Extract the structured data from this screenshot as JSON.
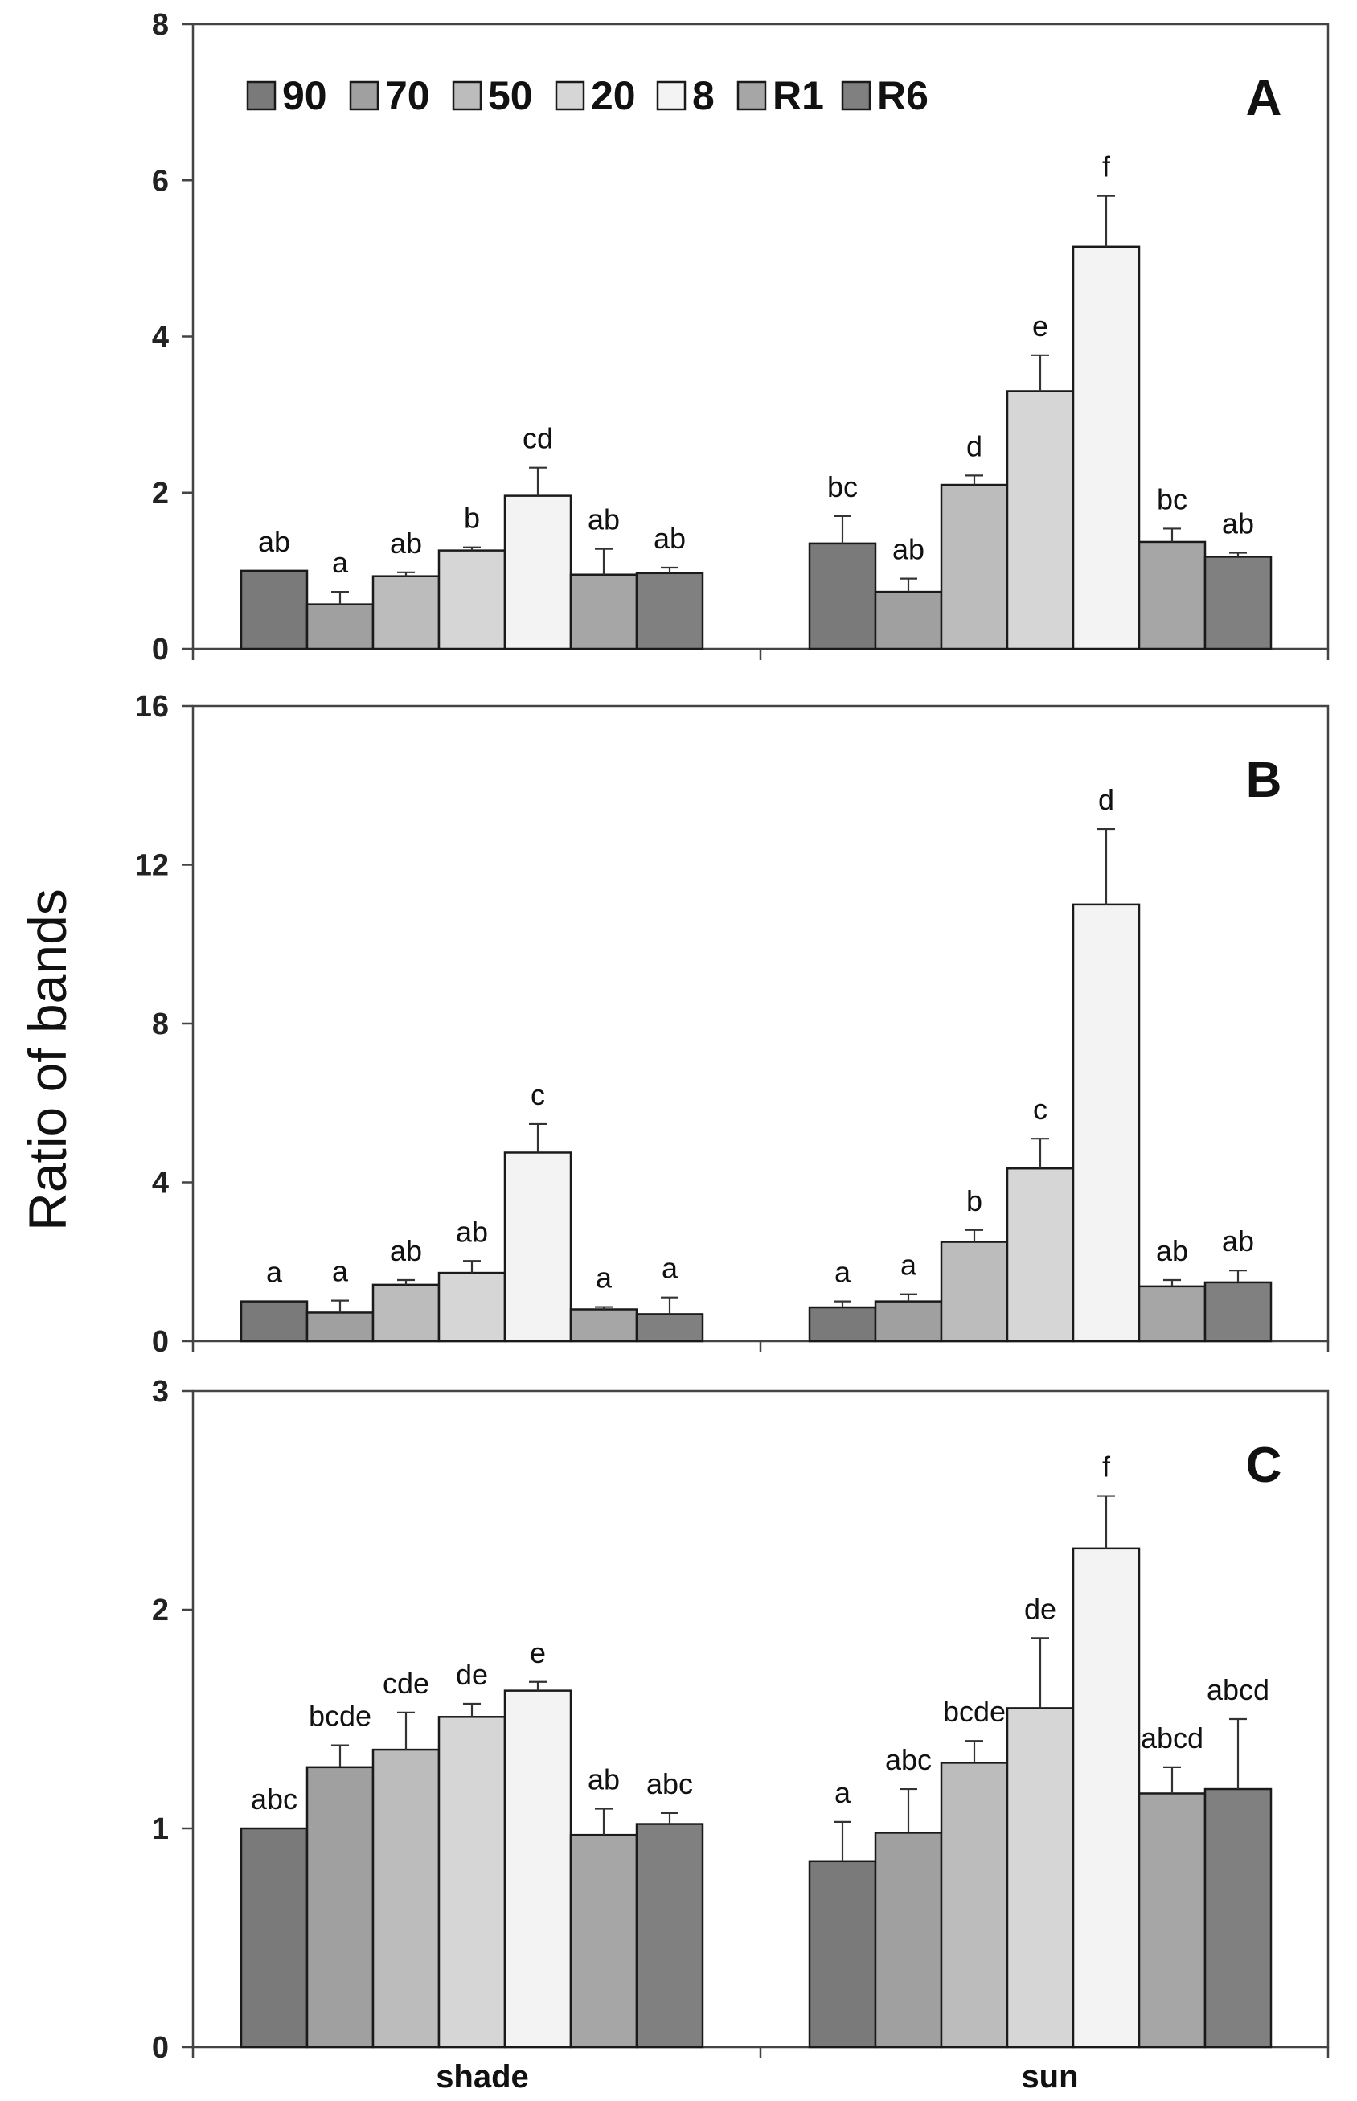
{
  "chart_data": {
    "type": "bar",
    "ylabel": "Ratio of bands",
    "categories": [
      "shade",
      "sun"
    ],
    "colors": [
      "#7a7a7a",
      "#a0a0a0",
      "#bcbcbc",
      "#d6d6d6",
      "#f3f3f3",
      "#a6a6a6",
      "#808080"
    ],
    "legend": [
      "90",
      "70",
      "50",
      "20",
      "8",
      "R1",
      "R6"
    ],
    "panels": [
      {
        "label": "A",
        "ylim": [
          0,
          8
        ],
        "ticks": [
          "0",
          "2",
          "4",
          "6",
          "8"
        ],
        "series": [
          {
            "name": "90",
            "values": [
              1.0,
              1.35
            ],
            "errors": [
              0.0,
              0.35
            ],
            "letters": [
              "ab",
              "bc"
            ]
          },
          {
            "name": "70",
            "values": [
              0.57,
              0.73
            ],
            "errors": [
              0.16,
              0.17
            ],
            "letters": [
              "a",
              "ab"
            ]
          },
          {
            "name": "50",
            "values": [
              0.93,
              2.1
            ],
            "errors": [
              0.05,
              0.12
            ],
            "letters": [
              "ab",
              "d"
            ]
          },
          {
            "name": "20",
            "values": [
              1.26,
              3.3
            ],
            "errors": [
              0.04,
              0.46
            ],
            "letters": [
              "b",
              "e"
            ]
          },
          {
            "name": "8",
            "values": [
              1.96,
              5.15
            ],
            "errors": [
              0.36,
              0.65
            ],
            "letters": [
              "cd",
              "f"
            ]
          },
          {
            "name": "R1",
            "values": [
              0.95,
              1.37
            ],
            "errors": [
              0.33,
              0.17
            ],
            "letters": [
              "ab",
              "bc"
            ]
          },
          {
            "name": "R6",
            "values": [
              0.97,
              1.18
            ],
            "errors": [
              0.07,
              0.05
            ],
            "letters": [
              "ab",
              "ab"
            ]
          }
        ]
      },
      {
        "label": "B",
        "ylim": [
          0,
          16
        ],
        "ticks": [
          "0",
          "4",
          "8",
          "12",
          "16"
        ],
        "series": [
          {
            "name": "90",
            "values": [
              1.0,
              0.85
            ],
            "errors": [
              0.0,
              0.15
            ],
            "letters": [
              "a",
              "a"
            ]
          },
          {
            "name": "70",
            "values": [
              0.72,
              1.0
            ],
            "errors": [
              0.3,
              0.18
            ],
            "letters": [
              "a",
              "a"
            ]
          },
          {
            "name": "50",
            "values": [
              1.42,
              2.5
            ],
            "errors": [
              0.12,
              0.3
            ],
            "letters": [
              "ab",
              "b"
            ]
          },
          {
            "name": "20",
            "values": [
              1.72,
              4.35
            ],
            "errors": [
              0.3,
              0.75
            ],
            "letters": [
              "ab",
              "c"
            ]
          },
          {
            "name": "8",
            "values": [
              4.75,
              11.0
            ],
            "errors": [
              0.72,
              1.9
            ],
            "letters": [
              "c",
              "d"
            ]
          },
          {
            "name": "R1",
            "values": [
              0.8,
              1.38
            ],
            "errors": [
              0.06,
              0.16
            ],
            "letters": [
              "a",
              "ab"
            ]
          },
          {
            "name": "R6",
            "values": [
              0.68,
              1.48
            ],
            "errors": [
              0.42,
              0.3
            ],
            "letters": [
              "a",
              "ab"
            ]
          }
        ]
      },
      {
        "label": "C",
        "ylim": [
          0,
          3
        ],
        "ticks": [
          "0",
          "1",
          "2",
          "3"
        ],
        "series": [
          {
            "name": "90",
            "values": [
              1.0,
              0.85
            ],
            "errors": [
              0.0,
              0.18
            ],
            "letters": [
              "abc",
              "a"
            ]
          },
          {
            "name": "70",
            "values": [
              1.28,
              0.98
            ],
            "errors": [
              0.1,
              0.2
            ],
            "letters": [
              "bcde",
              "abc"
            ]
          },
          {
            "name": "50",
            "values": [
              1.36,
              1.3
            ],
            "errors": [
              0.17,
              0.1
            ],
            "letters": [
              "cde",
              "bcde"
            ]
          },
          {
            "name": "20",
            "values": [
              1.51,
              1.55
            ],
            "errors": [
              0.06,
              0.32
            ],
            "letters": [
              "de",
              "de"
            ]
          },
          {
            "name": "8",
            "values": [
              1.63,
              2.28
            ],
            "errors": [
              0.04,
              0.24
            ],
            "letters": [
              "e",
              "f"
            ]
          },
          {
            "name": "R1",
            "values": [
              0.97,
              1.16
            ],
            "errors": [
              0.12,
              0.12
            ],
            "letters": [
              "ab",
              "abcd"
            ]
          },
          {
            "name": "R6",
            "values": [
              1.02,
              1.18
            ],
            "errors": [
              0.05,
              0.32
            ],
            "letters": [
              "abc",
              "abcd"
            ]
          }
        ]
      }
    ]
  }
}
